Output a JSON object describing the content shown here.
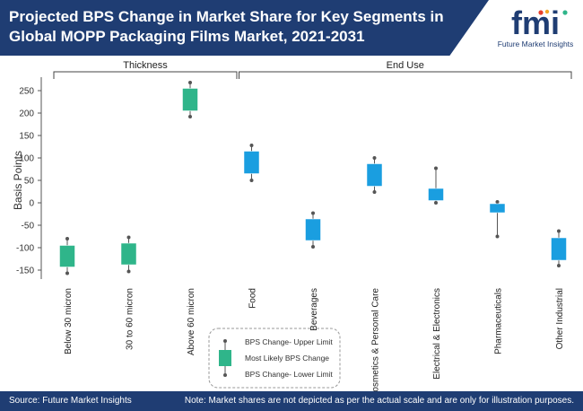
{
  "title": "Projected BPS Change in Market Share for Key Segments in Global MOPP Packaging Films Market, 2021-2031",
  "logo": {
    "mark": "fmi",
    "text": "Future Market Insights"
  },
  "footer": {
    "source": "Source: Future Market Insights",
    "note": "Note: Market shares are not depicted as per the actual scale and are only for illustration purposes."
  },
  "colors": {
    "green": "#2fb58a",
    "blue": "#1a9ee0",
    "navy": "#1f3d73"
  },
  "chart_data": {
    "type": "box",
    "ylabel": "Basis Points",
    "ylim": [
      -170,
      280
    ],
    "yticks": [
      -150,
      -100,
      -50,
      0,
      50,
      100,
      150,
      200,
      250
    ],
    "groups": [
      {
        "label": "Thickness",
        "categories": [
          0,
          1,
          2
        ]
      },
      {
        "label": "End Use",
        "categories": [
          3,
          4,
          5,
          6,
          7,
          8
        ]
      }
    ],
    "categories": [
      "Below 30 micron",
      "30 to 60 micron",
      "Above 60 micron",
      "Food",
      "Beverages",
      "Cosmetics & Personal Care",
      "Electrical & Electronics",
      "Pharmaceuticals",
      "Other Industrial"
    ],
    "series": [
      {
        "upper": -80,
        "box_top": -95,
        "box_bottom": -143,
        "lower": -157,
        "color": "green"
      },
      {
        "upper": -77,
        "box_top": -90,
        "box_bottom": -138,
        "lower": -153,
        "color": "green"
      },
      {
        "upper": 268,
        "box_top": 255,
        "box_bottom": 205,
        "lower": 192,
        "color": "green"
      },
      {
        "upper": 128,
        "box_top": 115,
        "box_bottom": 65,
        "lower": 50,
        "color": "blue"
      },
      {
        "upper": -23,
        "box_top": -36,
        "box_bottom": -84,
        "lower": -98,
        "color": "blue"
      },
      {
        "upper": 100,
        "box_top": 87,
        "box_bottom": 37,
        "lower": 24,
        "color": "blue"
      },
      {
        "upper": 77,
        "box_top": 32,
        "box_bottom": 5,
        "lower": 0,
        "color": "blue"
      },
      {
        "upper": 2,
        "box_top": -2,
        "box_bottom": -22,
        "lower": -75,
        "color": "blue"
      },
      {
        "upper": -63,
        "box_top": -78,
        "box_bottom": -128,
        "lower": -140,
        "color": "blue"
      }
    ],
    "legend": {
      "upper": "BPS Change- Upper Limit",
      "likely": "Most Likely BPS Change",
      "lower": "BPS Change- Lower Limit"
    }
  }
}
